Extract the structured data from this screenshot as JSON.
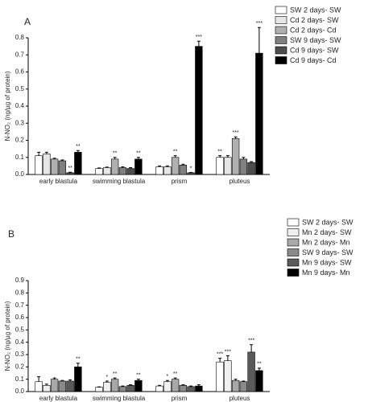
{
  "chart_data": [
    {
      "type": "bar",
      "panel_label": "A",
      "y_label": "N-NO₂ (ng/µg of protein)",
      "categories": [
        "early blastula",
        "swimming blastula",
        "prism",
        "pluteus"
      ],
      "ylim": [
        0,
        0.8
      ],
      "yticks": [
        {
          "value": 0,
          "label": "0.0"
        },
        0.1,
        0.2,
        0.3,
        0.4,
        0.5,
        0.6,
        0.7,
        0.8
      ],
      "series": [
        {
          "name": "SW 2 days- SW",
          "color": "#ffffff",
          "values": [
            0.11,
            0.035,
            0.045,
            0.1
          ],
          "errors": [
            0.02,
            0.003,
            0.005,
            0.01
          ],
          "annotations": [
            null,
            null,
            null,
            "**"
          ]
        },
        {
          "name": "Cd 2 days- SW",
          "color": "#e6e6e6",
          "values": [
            0.12,
            0.04,
            0.045,
            0.1
          ],
          "errors": [
            0.01,
            0.003,
            0.005,
            0.01
          ],
          "annotations": [
            null,
            null,
            null,
            null
          ]
        },
        {
          "name": "Cd 2 days- Cd",
          "color": "#b0b0b0",
          "values": [
            0.09,
            0.09,
            0.1,
            0.21
          ],
          "errors": [
            0.005,
            0.01,
            0.01,
            0.01
          ],
          "annotations": [
            null,
            "**",
            "**",
            "***"
          ]
        },
        {
          "name": "SW 9 days- SW",
          "color": "#808080",
          "values": [
            0.08,
            0.04,
            0.055,
            0.09
          ],
          "errors": [
            0.005,
            0.005,
            0.005,
            0.01
          ],
          "annotations": [
            null,
            null,
            null,
            null
          ]
        },
        {
          "name": "Cd 9 days- SW",
          "color": "#4d4d4d",
          "values": [
            0.01,
            0.035,
            0.01,
            0.07
          ],
          "errors": [
            0.003,
            0.005,
            0.002,
            0.005
          ],
          "annotations": [
            "**",
            null,
            "*",
            null
          ]
        },
        {
          "name": "Cd 9 days- Cd",
          "color": "#000000",
          "values": [
            0.13,
            0.09,
            0.75,
            0.71
          ],
          "errors": [
            0.01,
            0.01,
            0.03,
            0.15
          ],
          "annotations": [
            "**",
            "**",
            "***",
            "***"
          ]
        }
      ]
    },
    {
      "type": "bar",
      "panel_label": "B",
      "y_label": "N-NO₂ (ng/µg of protein)",
      "categories": [
        "early blastula",
        "swimming blastula",
        "prism",
        "pluteus"
      ],
      "ylim": [
        0,
        0.9
      ],
      "yticks": [
        {
          "value": 0,
          "label": "0.0"
        },
        0.1,
        0.2,
        0.3,
        0.4,
        0.5,
        0.6,
        0.7,
        0.8,
        0.9
      ],
      "series": [
        {
          "name": "SW 2 days- SW",
          "color": "#ffffff",
          "values": [
            0.08,
            0.035,
            0.045,
            0.24
          ],
          "errors": [
            0.04,
            0.003,
            0.005,
            0.03
          ],
          "annotations": [
            null,
            null,
            null,
            "***"
          ]
        },
        {
          "name": "Mn 2 days- SW",
          "color": "#f0f0f0",
          "values": [
            0.05,
            0.075,
            0.08,
            0.25
          ],
          "errors": [
            0.01,
            0.01,
            0.01,
            0.04
          ],
          "annotations": [
            null,
            "*",
            "*",
            "***"
          ]
        },
        {
          "name": "Mn 2 days- Mn",
          "color": "#a8a8a8",
          "values": [
            0.1,
            0.1,
            0.1,
            0.09
          ],
          "errors": [
            0.01,
            0.01,
            0.01,
            0.01
          ],
          "annotations": [
            null,
            "**",
            "**",
            null
          ]
        },
        {
          "name": "SW 9 days- SW",
          "color": "#8a8a8a",
          "values": [
            0.085,
            0.04,
            0.05,
            0.08
          ],
          "errors": [
            0.005,
            0.005,
            0.005,
            0.005
          ],
          "annotations": [
            null,
            null,
            null,
            null
          ]
        },
        {
          "name": "Mn 9 days- SW",
          "color": "#5a5a5a",
          "values": [
            0.085,
            0.05,
            0.04,
            0.32
          ],
          "errors": [
            0.01,
            0.005,
            0.005,
            0.06
          ],
          "annotations": [
            null,
            null,
            null,
            "***"
          ]
        },
        {
          "name": "Mn 9 days- Mn",
          "color": "#000000",
          "values": [
            0.2,
            0.09,
            0.045,
            0.17
          ],
          "errors": [
            0.03,
            0.01,
            0.01,
            0.02
          ],
          "annotations": [
            "**",
            "**",
            null,
            "**"
          ]
        }
      ]
    }
  ]
}
